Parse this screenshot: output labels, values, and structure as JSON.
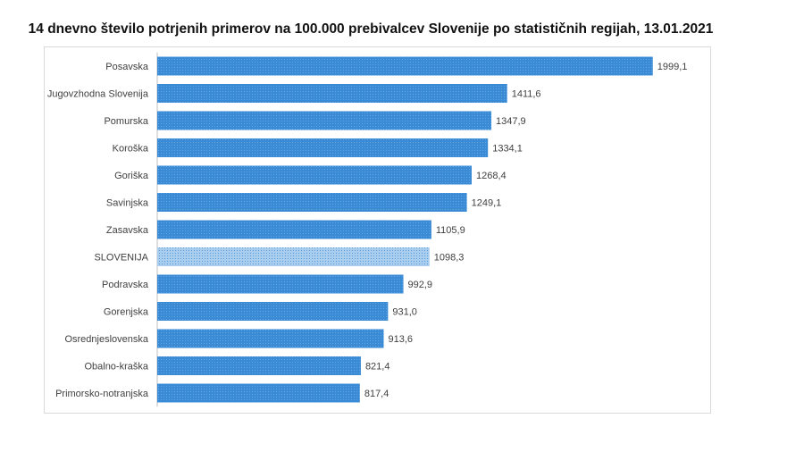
{
  "chart_data": {
    "type": "bar",
    "orientation": "horizontal",
    "title": "14 dnevno število potrjenih primerov na 100.000 prebivalcev Slovenije po statističnih regijah, 13.01.2021",
    "categories": [
      "Posavska",
      "Jugovzhodna Slovenija",
      "Pomurska",
      "Koroška",
      "Goriška",
      "Savinjska",
      "Zasavska",
      "SLOVENIJA",
      "Podravska",
      "Gorenjska",
      "Osrednjeslovenska",
      "Obalno-kraška",
      "Primorsko-notranjska"
    ],
    "values": [
      1999.1,
      1411.6,
      1347.9,
      1334.1,
      1268.4,
      1249.1,
      1105.9,
      1098.3,
      992.9,
      931.0,
      913.6,
      821.4,
      817.4
    ],
    "value_labels": [
      "1999,1",
      "1411,6",
      "1347,9",
      "1334,1",
      "1268,4",
      "1249,1",
      "1105,9",
      "1098,3",
      "992,9",
      "931,0",
      "913,6",
      "821,4",
      "817,4"
    ],
    "highlight_category": "SLOVENIJA",
    "xlim": [
      0,
      2200
    ],
    "grid": false,
    "legend": "none",
    "colors": {
      "bar": "#3b8ad4",
      "bar_pattern": "#5fa6e6",
      "highlight": "#a9cdef",
      "highlight_pattern": "#5a9bd8",
      "axis": "#bfbfbf"
    }
  }
}
